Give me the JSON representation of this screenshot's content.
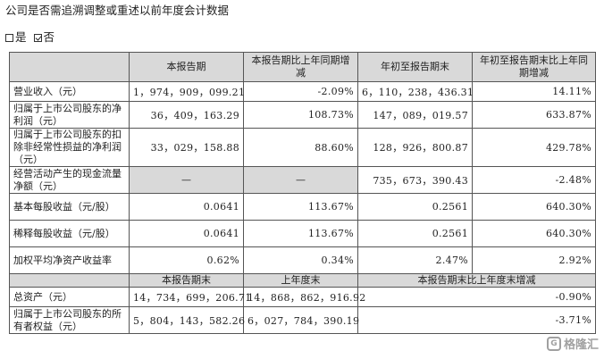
{
  "heading": "公司是否需追溯调整或重述以前年度会计数据",
  "choice": {
    "yes_label": "是",
    "yes_checked": false,
    "no_label": "否",
    "no_checked": true
  },
  "table": {
    "header": [
      "",
      "本报告期",
      "本报告期比上年同期增减",
      "年初至报告期末",
      "年初至报告期末比上年同期增减"
    ],
    "rows": [
      {
        "label": "营业收入（元）",
        "cur": "1，974，909，099.21",
        "cur_chg": "-2.09%",
        "ytd": "6，110，238，436.31",
        "ytd_chg": "14.11%"
      },
      {
        "label": "归属于上市公司股东的净利润（元）",
        "cur": "36，409，163.29",
        "cur_chg": "108.73%",
        "ytd": "147，089，019.57",
        "ytd_chg": "633.87%"
      },
      {
        "label": "归属于上市公司股东的扣除非经常性损益的净利润（元）",
        "cur": "33，029，158.88",
        "cur_chg": "88.60%",
        "ytd": "128，926，800.87",
        "ytd_chg": "429.78%"
      },
      {
        "label": "经营活动产生的现金流量净额（元）",
        "cur": "—",
        "cur_chg": "—",
        "ytd": "735，673，390.43",
        "ytd_chg": "-2.48%"
      },
      {
        "label": "基本每股收益（元/股）",
        "cur": "0.0641",
        "cur_chg": "113.67%",
        "ytd": "0.2561",
        "ytd_chg": "640.30%"
      },
      {
        "label": "稀释每股收益（元/股）",
        "cur": "0.0641",
        "cur_chg": "113.67%",
        "ytd": "0.2561",
        "ytd_chg": "640.30%"
      },
      {
        "label": "加权平均净资产收益率",
        "cur": "0.62%",
        "cur_chg": "0.34%",
        "ytd": "2.47%",
        "ytd_chg": "2.92%"
      }
    ],
    "sub_header": [
      "",
      "本报告期末",
      "上年度末",
      "本报告期末比上年度末增减"
    ],
    "balance_rows": [
      {
        "label": "总资产（元）",
        "cur": "14，734，699，206.71",
        "prev": "14，868，862，916.92",
        "chg": "-0.90%"
      },
      {
        "label": "归属于上市公司股东的所有者权益（元）",
        "cur": "5，804，143，582.26",
        "prev": "6，027，784，390.19",
        "chg": "-3.71%"
      }
    ]
  },
  "watermark": {
    "text": "格隆汇",
    "logo": "G"
  }
}
